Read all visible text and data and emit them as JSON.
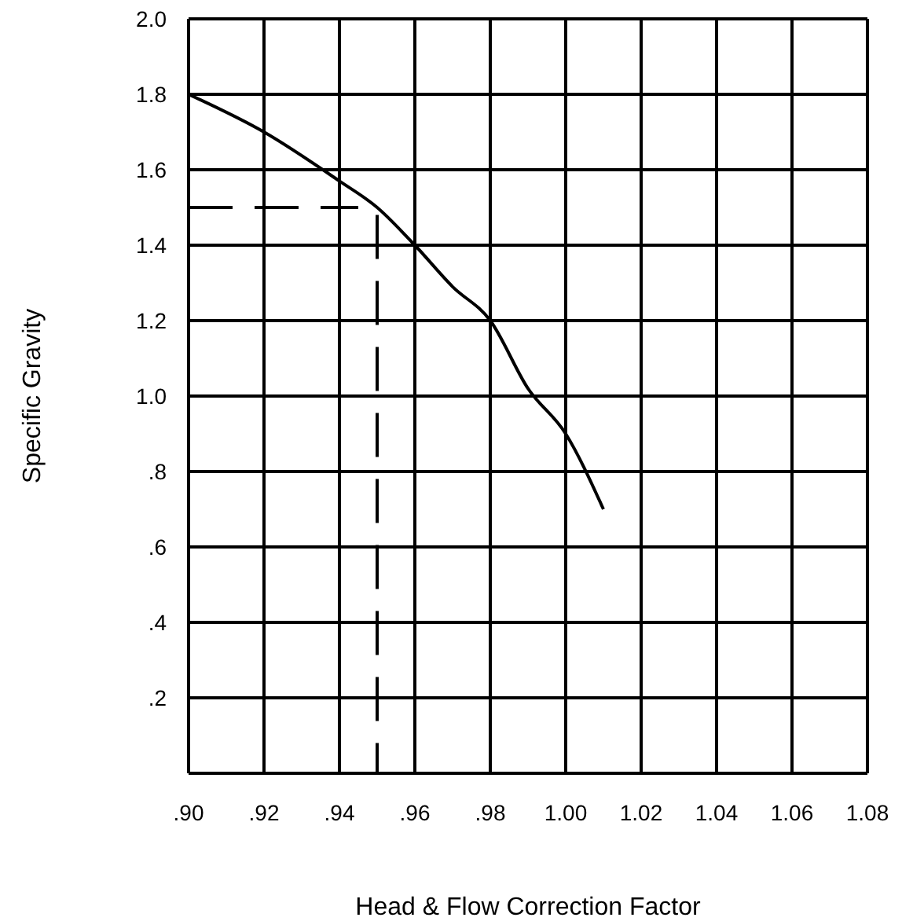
{
  "chart_data": {
    "type": "line",
    "xlabel": "Head & Flow Correction Factor",
    "ylabel": "Specific Gravity",
    "xlim": [
      0.9,
      1.08
    ],
    "xticks": [
      {
        "value": 0.9,
        "label": ".90"
      },
      {
        "value": 0.92,
        "label": ".92"
      },
      {
        "value": 0.94,
        "label": ".94"
      },
      {
        "value": 0.96,
        "label": ".96"
      },
      {
        "value": 0.98,
        "label": ".98"
      },
      {
        "value": 1,
        "label": "1.00"
      },
      {
        "value": 1.02,
        "label": "1.02"
      },
      {
        "value": 1.04,
        "label": "1.04"
      },
      {
        "value": 1.06,
        "label": "1.06"
      },
      {
        "value": 1.08,
        "label": "1.08"
      }
    ],
    "ylim": [
      0,
      2
    ],
    "yticks": [
      {
        "value": 0.2,
        "label": ".2"
      },
      {
        "value": 0.4,
        "label": ".4"
      },
      {
        "value": 0.6,
        "label": ".6"
      },
      {
        "value": 0.8,
        "label": ".8"
      },
      {
        "value": 1,
        "label": "1.0"
      },
      {
        "value": 1.2,
        "label": "1.2"
      },
      {
        "value": 1.4,
        "label": "1.4"
      },
      {
        "value": 1.6,
        "label": "1.6"
      },
      {
        "value": 1.8,
        "label": "1.8"
      },
      {
        "value": 2,
        "label": "2.0"
      }
    ],
    "grid": true,
    "marker": "none",
    "series": [
      {
        "color": "#000000",
        "line_style": "solid",
        "x": [
          0.9,
          0.92,
          0.94,
          0.95,
          0.96,
          0.97,
          0.98,
          0.99,
          1.0,
          1.01
        ],
        "values": [
          1.8,
          1.7,
          1.57,
          1.5,
          1.4,
          1.29,
          1.2,
          1.02,
          0.9,
          0.7
        ]
      },
      {
        "color": "#000000",
        "line_style": "dashed",
        "x": [
          0.9,
          0.945
        ],
        "values": [
          1.5,
          1.5
        ]
      },
      {
        "color": "#000000",
        "line_style": "dashed",
        "x": [
          0.95,
          0.95
        ],
        "values": [
          1.48,
          0
        ]
      }
    ]
  }
}
